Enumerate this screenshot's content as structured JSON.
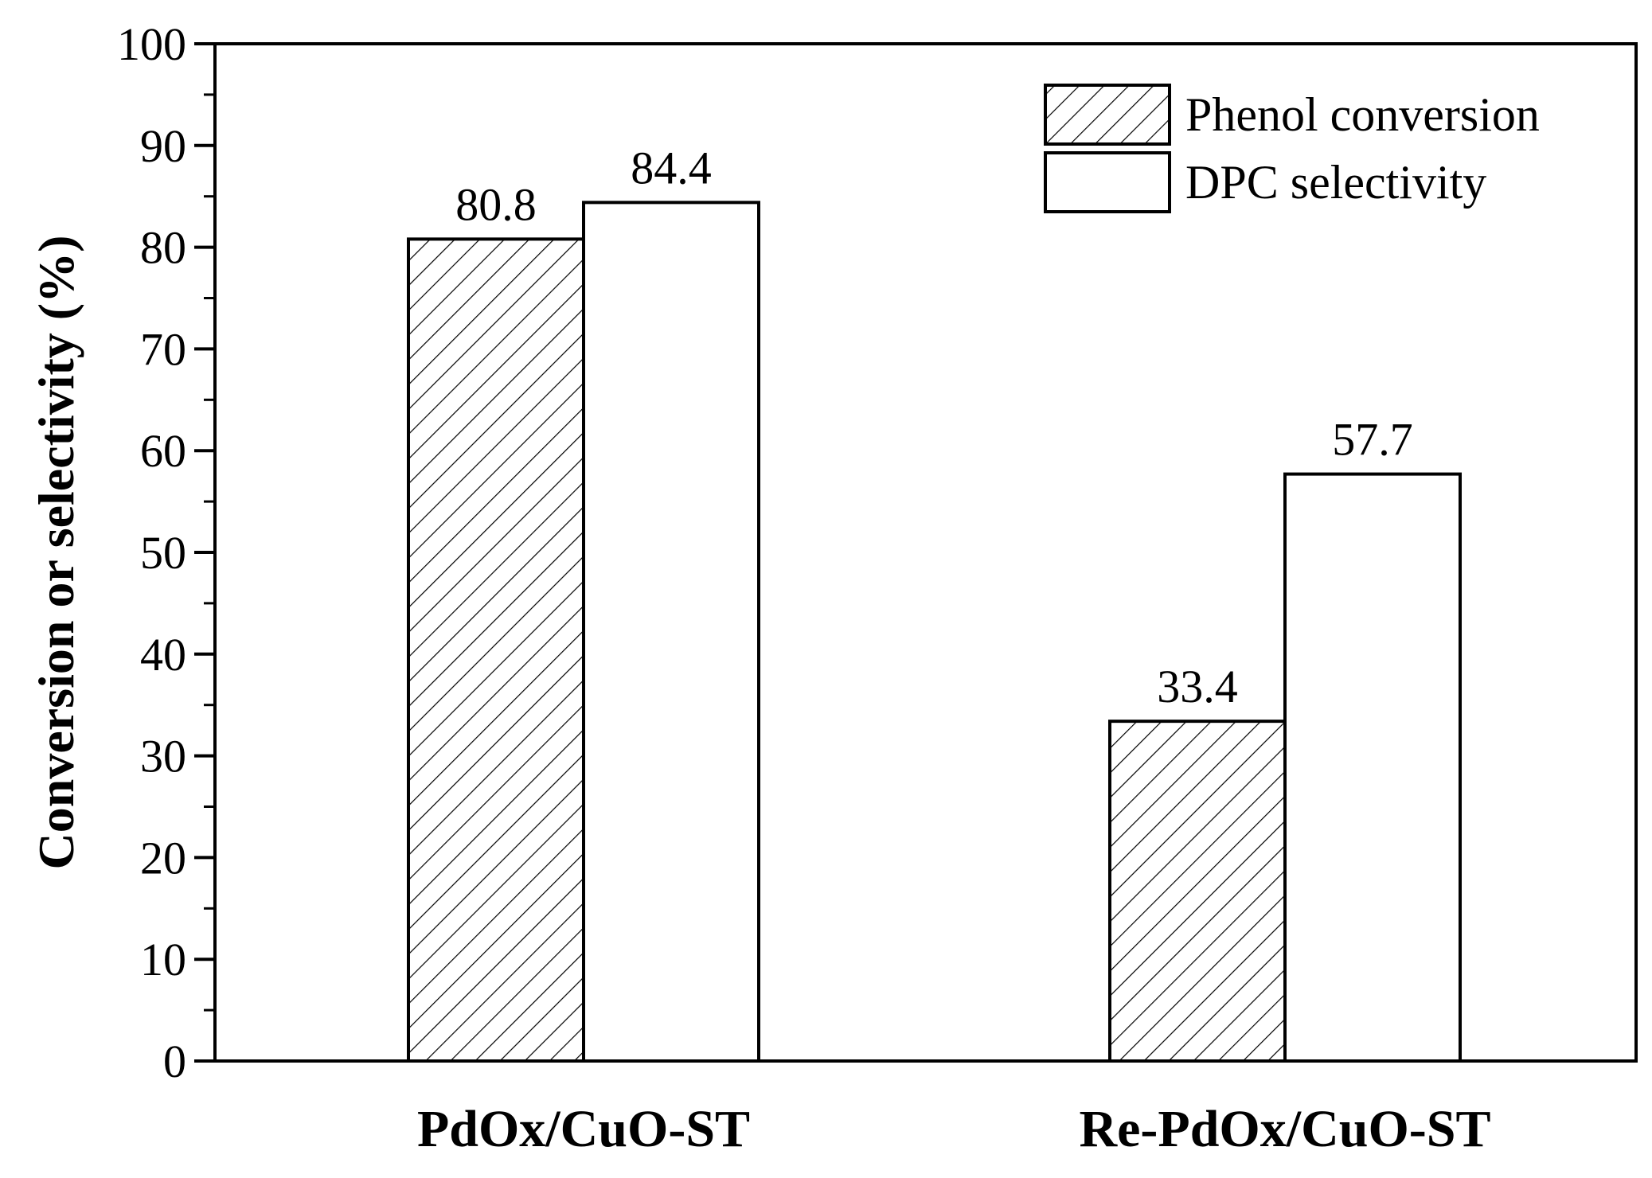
{
  "chart_data": {
    "type": "bar",
    "categories": [
      "PdOx/CuO-ST",
      "Re-PdOx/CuO-ST"
    ],
    "series": [
      {
        "name": "Phenol conversion",
        "values": [
          80.8,
          33.4
        ],
        "pattern": "hatch"
      },
      {
        "name": "DPC selectivity",
        "values": [
          84.4,
          57.7
        ],
        "pattern": "none"
      }
    ],
    "data_labels": [
      [
        "80.8",
        "33.4"
      ],
      [
        "84.4",
        "57.7"
      ]
    ],
    "title": "",
    "xlabel": "",
    "ylabel": "Conversion or selectivity (%)",
    "ylim": [
      0,
      100
    ],
    "yticks": [
      0,
      10,
      20,
      30,
      40,
      50,
      60,
      70,
      80,
      90,
      100
    ],
    "grid": false,
    "legend_position": "top-right",
    "colors": {
      "bar_fill": "#ffffff",
      "stroke": "#000000"
    }
  }
}
